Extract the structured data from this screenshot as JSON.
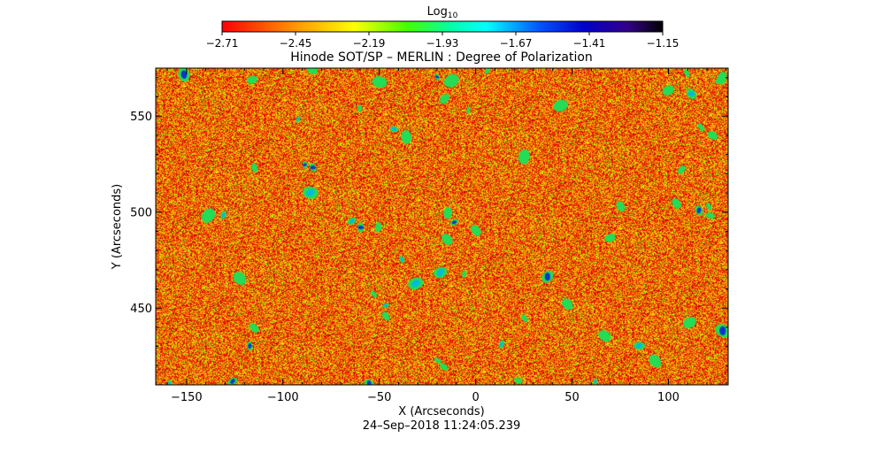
{
  "chart_data": {
    "type": "heatmap",
    "title": "Hinode SOT/SP – MERLIN : Degree of Polarization",
    "xlabel": "X (Arcseconds)",
    "ylabel": "Y (Arcseconds)",
    "xlim": [
      -166,
      131
    ],
    "ylim": [
      410,
      575
    ],
    "x_ticks": [
      -150,
      -100,
      -50,
      0,
      50,
      100
    ],
    "x_tick_labels": [
      "−150",
      "−100",
      "−50",
      "0",
      "50",
      "100"
    ],
    "y_ticks": [
      450,
      500,
      550
    ],
    "y_tick_labels": [
      "450",
      "500",
      "550"
    ],
    "colorbar": {
      "label_base": "Log",
      "label_sub": "10",
      "scale": "log10",
      "min": -2.71,
      "max": -1.15,
      "ticks": [
        -2.71,
        -2.45,
        -2.19,
        -1.93,
        -1.67,
        -1.41,
        -1.15
      ],
      "tick_labels": [
        "−2.71",
        "−2.45",
        "−2.19",
        "−1.93",
        "−1.67",
        "−1.41",
        "−1.15"
      ],
      "colormap": [
        "#ff0000",
        "#ff8800",
        "#ffff00",
        "#00ff00",
        "#00ffff",
        "#0000ff",
        "#6600aa",
        "#000000"
      ]
    },
    "value_distribution": {
      "typical_range": [
        -2.71,
        -2.2
      ],
      "dominant_color": "#f07828",
      "sparse_patches_range": [
        -2.0,
        -1.6
      ]
    },
    "timestamp": "24–Sep–2018 11:24:05.239"
  }
}
